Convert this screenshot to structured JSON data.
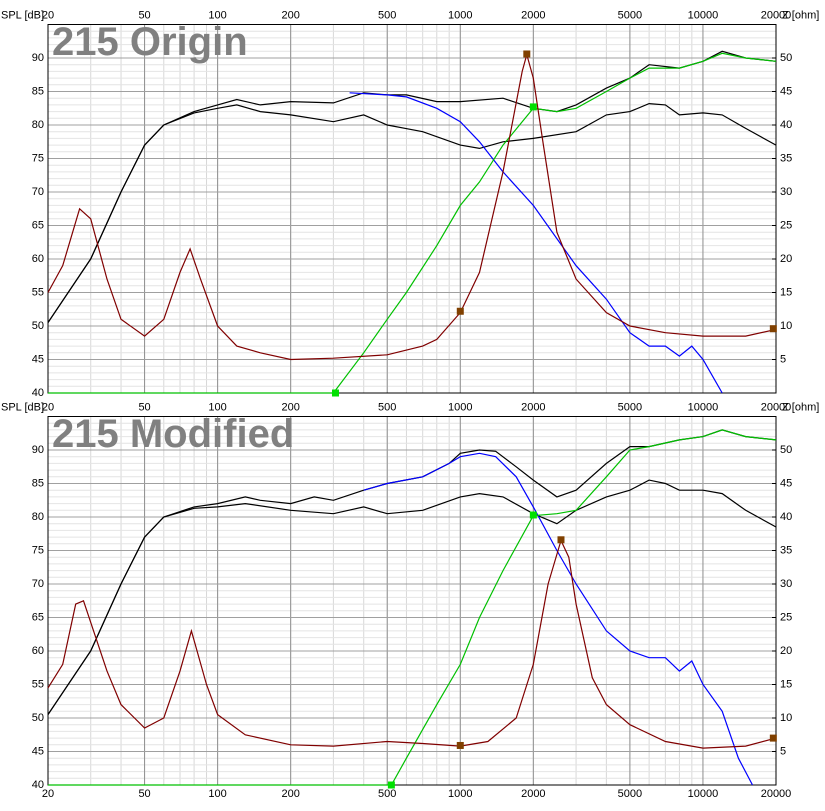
{
  "chart_data": [
    {
      "type": "line",
      "title": "215 Origin",
      "ylabel": "SPL [dB]",
      "y2label": "Z [ohm]",
      "log_x": true,
      "grid": true,
      "xlim": [
        20,
        20000
      ],
      "xticks": [
        20,
        50,
        100,
        200,
        500,
        1000,
        2000,
        5000,
        10000,
        20000
      ],
      "ylim": [
        40,
        95
      ],
      "yticks": [
        40,
        45,
        50,
        55,
        60,
        65,
        70,
        75,
        80,
        85,
        90
      ],
      "y2lim": [
        0,
        55
      ],
      "y2ticks": [
        5,
        10,
        15,
        20,
        25,
        30,
        35,
        40,
        45,
        50
      ],
      "series": [
        {
          "color": "#000000",
          "x": [
            20,
            30,
            40,
            50,
            60,
            80,
            100,
            120,
            150,
            200,
            300,
            400,
            500,
            600,
            800,
            1000,
            1500,
            2000,
            2500,
            3000,
            4000,
            5000,
            6000,
            8000,
            10000,
            12000,
            15000,
            20000
          ],
          "values": [
            50.5,
            60,
            70,
            77,
            80,
            82,
            83,
            83.8,
            83,
            83.5,
            83.3,
            84.8,
            84.5,
            84.5,
            83.5,
            83.5,
            84,
            82.5,
            82,
            83,
            85.5,
            87,
            89,
            88.5,
            89.5,
            91,
            90,
            89.5
          ]
        },
        {
          "color": "#000000",
          "x": [
            20,
            30,
            40,
            50,
            60,
            80,
            100,
            120,
            150,
            200,
            300,
            400,
            500,
            700,
            1000,
            1200,
            1500,
            2000,
            3000,
            4000,
            5000,
            6000,
            7000,
            8000,
            10000,
            12000,
            15000,
            20000
          ],
          "values": [
            50.5,
            60,
            70,
            77,
            80,
            81.8,
            82.5,
            83,
            82,
            81.5,
            80.5,
            81.5,
            80,
            79,
            77,
            76.5,
            77.5,
            78,
            79,
            81.5,
            82,
            83.2,
            83,
            81.5,
            81.8,
            81.5,
            79.5,
            77
          ]
        },
        {
          "color": "#0000ff",
          "x": [
            350,
            500,
            600,
            800,
            1000,
            1200,
            1500,
            2000,
            3000,
            4000,
            5000,
            6000,
            7000,
            8000,
            9000,
            10000,
            12000
          ],
          "values": [
            84.8,
            84.5,
            84.2,
            82.5,
            80.5,
            77.5,
            73,
            68,
            59,
            54,
            49,
            47,
            47,
            45.5,
            47,
            45,
            40
          ]
        },
        {
          "color": "#00c000",
          "x": [
            20,
            300,
            400,
            500,
            600,
            800,
            1000,
            1200,
            1500,
            2000,
            2500,
            3000,
            4000,
            5000,
            6000,
            8000,
            10000,
            12000,
            15000,
            20000
          ],
          "values": [
            40,
            40,
            46,
            51,
            55,
            62,
            68,
            71.5,
            77,
            82.5,
            82,
            82.5,
            85,
            87,
            88.5,
            88.5,
            89.5,
            90.7,
            90,
            89.5
          ]
        },
        {
          "color": "#800000",
          "axis": "y2",
          "x": [
            20,
            23,
            27,
            30,
            35,
            40,
            50,
            60,
            70,
            77,
            85,
            100,
            120,
            150,
            200,
            300,
            500,
            700,
            800,
            1000,
            1200,
            1500,
            1800,
            1880,
            2000,
            2200,
            2500,
            3000,
            4000,
            5000,
            7000,
            10000,
            15000,
            20000
          ],
          "values": [
            15,
            19,
            27.5,
            26,
            17,
            11,
            8.5,
            11,
            18,
            21.5,
            17,
            10,
            7,
            6,
            5,
            5.2,
            5.7,
            7,
            8,
            12,
            18,
            33,
            48,
            50.5,
            47,
            37,
            24,
            17,
            12,
            10,
            9,
            8.5,
            8.5,
            9.5
          ]
        },
        {
          "color": "#804000",
          "marker": "square",
          "axis": "y2",
          "x": [
            1000,
            1880,
            19500
          ],
          "values": [
            12.2,
            50.6,
            9.6
          ]
        },
        {
          "color": "#00e000",
          "marker": "square",
          "x": [
            306,
            2000
          ],
          "values": [
            40,
            82.7
          ]
        }
      ]
    },
    {
      "type": "line",
      "title": "215 Modified",
      "ylabel": "SPL [dB]",
      "y2label": "Z [ohm]",
      "log_x": true,
      "grid": true,
      "xlim": [
        20,
        20000
      ],
      "xticks": [
        20,
        50,
        100,
        200,
        500,
        1000,
        2000,
        5000,
        10000,
        20000
      ],
      "ylim": [
        40,
        95
      ],
      "yticks": [
        40,
        45,
        50,
        55,
        60,
        65,
        70,
        75,
        80,
        85,
        90
      ],
      "y2lim": [
        0,
        55
      ],
      "y2ticks": [
        5,
        10,
        15,
        20,
        25,
        30,
        35,
        40,
        45,
        50
      ],
      "series": [
        {
          "color": "#000000",
          "x": [
            20,
            30,
            40,
            50,
            60,
            80,
            100,
            130,
            150,
            200,
            250,
            300,
            400,
            500,
            700,
            900,
            1000,
            1200,
            1400,
            1700,
            2000,
            2500,
            3000,
            4000,
            5000,
            6000,
            8000,
            10000,
            12000,
            15000,
            20000
          ],
          "values": [
            50.5,
            60,
            70,
            77,
            80,
            81.5,
            82,
            83,
            82.5,
            82,
            83,
            82.5,
            84,
            85,
            86,
            88,
            89.5,
            90,
            89.8,
            87.5,
            85.5,
            83,
            84,
            88,
            90.5,
            90.5,
            91.5,
            92,
            93,
            92,
            91.5
          ]
        },
        {
          "color": "#000000",
          "x": [
            20,
            30,
            40,
            50,
            60,
            80,
            100,
            130,
            200,
            300,
            400,
            500,
            700,
            1000,
            1200,
            1500,
            2000,
            2500,
            3000,
            4000,
            5000,
            6000,
            7000,
            8000,
            10000,
            12000,
            15000,
            20000
          ],
          "values": [
            50.5,
            60,
            70,
            77,
            80,
            81.3,
            81.5,
            82,
            81,
            80.5,
            81.5,
            80.5,
            81,
            83,
            83.5,
            83,
            80.5,
            79,
            81,
            83,
            84,
            85.5,
            85,
            84,
            84,
            83.5,
            81,
            78.5
          ]
        },
        {
          "color": "#0000ff",
          "x": [
            400,
            500,
            700,
            900,
            1000,
            1200,
            1400,
            1700,
            2000,
            2500,
            3000,
            4000,
            5000,
            6000,
            7000,
            8000,
            9000,
            10000,
            12000,
            14000,
            16000
          ],
          "values": [
            84,
            85,
            86,
            88,
            89,
            89.5,
            89,
            86,
            81.5,
            75,
            70,
            63,
            60,
            59,
            59,
            57,
            58.5,
            55,
            51,
            44,
            40
          ]
        },
        {
          "color": "#00c000",
          "x": [
            20,
            520,
            600,
            800,
            1000,
            1200,
            1500,
            2000,
            2500,
            3000,
            4000,
            5000,
            6000,
            8000,
            10000,
            12000,
            15000,
            20000
          ],
          "values": [
            40,
            40,
            44,
            52,
            58,
            65,
            72,
            80.2,
            80.5,
            81,
            86,
            90,
            90.5,
            91.5,
            92,
            93,
            92,
            91.5
          ]
        },
        {
          "color": "#800000",
          "axis": "y2",
          "x": [
            20,
            23,
            26,
            28,
            35,
            40,
            50,
            60,
            70,
            78,
            90,
            100,
            130,
            200,
            300,
            500,
            700,
            1000,
            1300,
            1700,
            2000,
            2300,
            2600,
            2800,
            3000,
            3500,
            4000,
            5000,
            7000,
            10000,
            15000,
            20000
          ],
          "values": [
            14.5,
            18,
            27,
            27.5,
            17,
            12,
            8.5,
            10,
            17,
            23,
            15,
            10.5,
            7.5,
            6,
            5.8,
            6.5,
            6.2,
            5.8,
            6.5,
            10,
            18,
            30,
            36.5,
            34,
            27,
            16,
            12,
            9,
            6.5,
            5.5,
            5.8,
            7
          ]
        },
        {
          "color": "#804000",
          "marker": "square",
          "axis": "y2",
          "x": [
            1000,
            2600,
            19500
          ],
          "values": [
            5.9,
            36.6,
            7
          ]
        },
        {
          "color": "#00e000",
          "marker": "square",
          "x": [
            520,
            2000
          ],
          "values": [
            40,
            80.3
          ]
        }
      ]
    }
  ]
}
